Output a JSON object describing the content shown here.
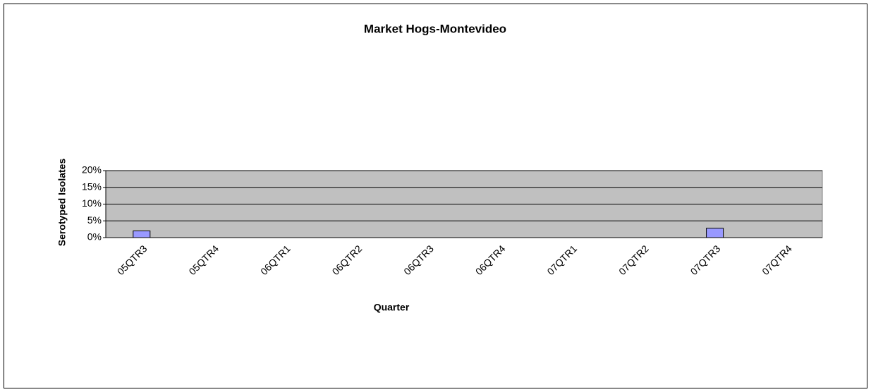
{
  "chart_data": {
    "type": "bar",
    "title": "Market Hogs-Montevideo",
    "x_label": "Quarter",
    "y_label": "Serotyped Isolates",
    "categories": [
      "05QTR3",
      "05QTR4",
      "06QTR1",
      "06QTR2",
      "06QTR3",
      "06QTR4",
      "07QTR1",
      "07QTR2",
      "07QTR3",
      "07QTR4"
    ],
    "values": [
      2,
      0,
      0,
      0,
      0,
      0,
      0,
      0,
      2.8,
      0
    ],
    "color": "#9999ff",
    "ylim": [
      0,
      20
    ],
    "yticks": [
      {
        "value": 0,
        "label": "0%"
      },
      {
        "value": 5,
        "label": "5%"
      },
      {
        "value": 10,
        "label": "10%"
      },
      {
        "value": 15,
        "label": "15%"
      },
      {
        "value": 20,
        "label": "20%"
      }
    ],
    "grid": true
  }
}
